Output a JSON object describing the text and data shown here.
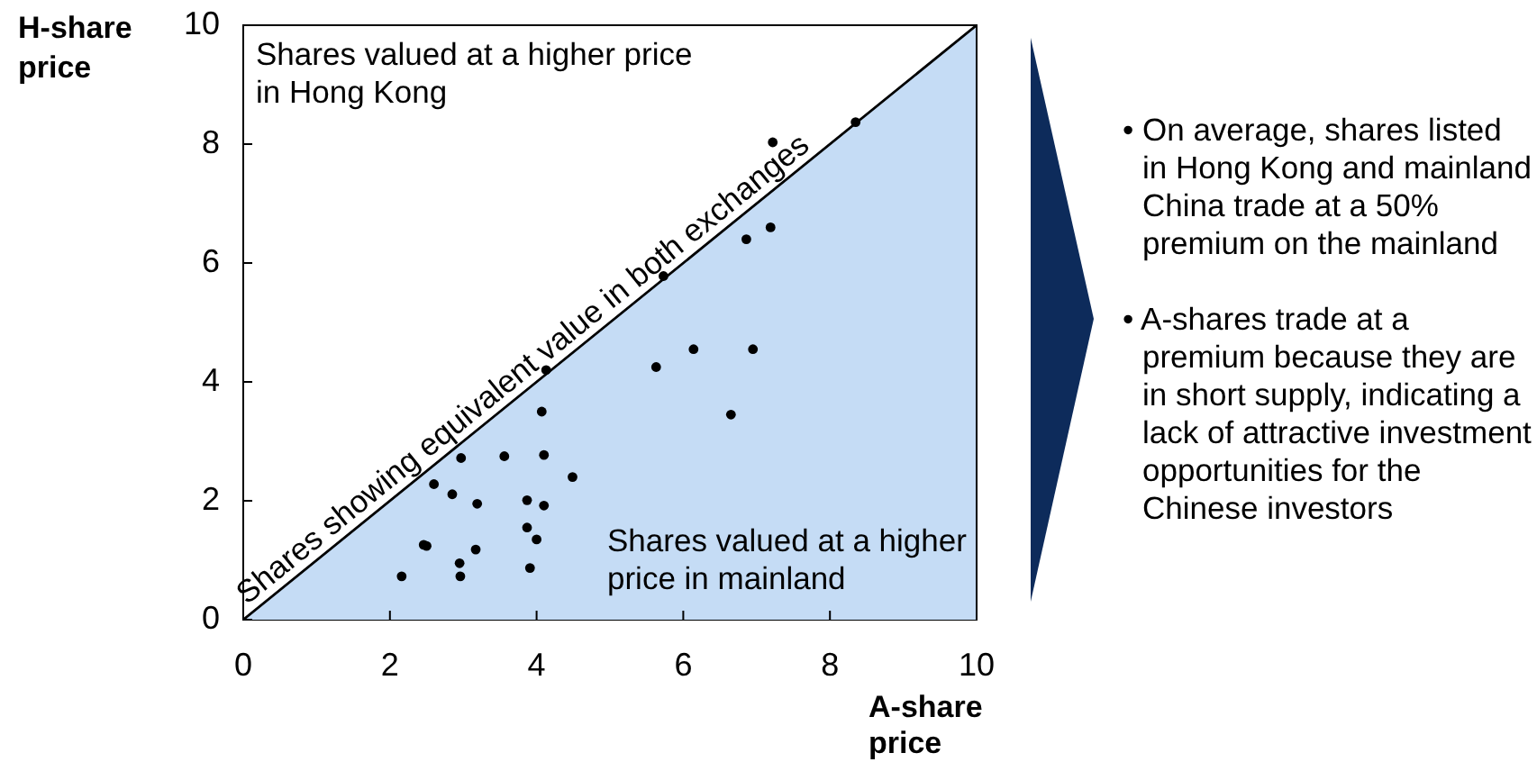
{
  "chart_data": {
    "type": "scatter",
    "xlabel": "A-share price",
    "ylabel": "H-share price",
    "xlim": [
      0,
      10
    ],
    "ylim": [
      0,
      10
    ],
    "xticks": [
      0,
      2,
      4,
      6,
      8,
      10
    ],
    "yticks": [
      0,
      2,
      4,
      6,
      8,
      10
    ],
    "marker": "circle",
    "series": [
      {
        "color": "#000000",
        "x": [
          2.16,
          2.46,
          2.5,
          2.6,
          2.85,
          2.95,
          2.96,
          2.97,
          3.17,
          3.19,
          3.56,
          3.87,
          3.87,
          3.91,
          4.0,
          4.07,
          4.1,
          4.1,
          4.13,
          4.49,
          5.63,
          5.73,
          6.14,
          6.65,
          6.86,
          6.95,
          7.19,
          7.22,
          8.35
        ],
        "values": [
          0.73,
          1.26,
          1.24,
          2.28,
          2.11,
          0.95,
          0.73,
          2.72,
          1.18,
          1.95,
          2.75,
          2.01,
          1.55,
          0.87,
          1.35,
          3.5,
          2.77,
          1.92,
          4.2,
          2.4,
          4.25,
          5.78,
          4.55,
          3.45,
          6.4,
          4.55,
          6.6,
          8.03,
          8.37
        ]
      },
      {
        "type": "area",
        "name": "Shares showing equivalent value in both exchanges",
        "color": "#c5dcf5",
        "marker": "none",
        "x": [
          0,
          10
        ],
        "values": [
          0,
          10
        ]
      }
    ],
    "annotations": [
      "Shares valued at a higher price in Hong Kong",
      "Shares valued at a higher price in mainland",
      "• On average, shares listed in Hong Kong and mainland China trade at a 50% premium on the mainland",
      "• A-shares trade at a premium because they are in short supply, indicating a lack of attractive investment opportunities for the Chinese investors"
    ]
  }
}
